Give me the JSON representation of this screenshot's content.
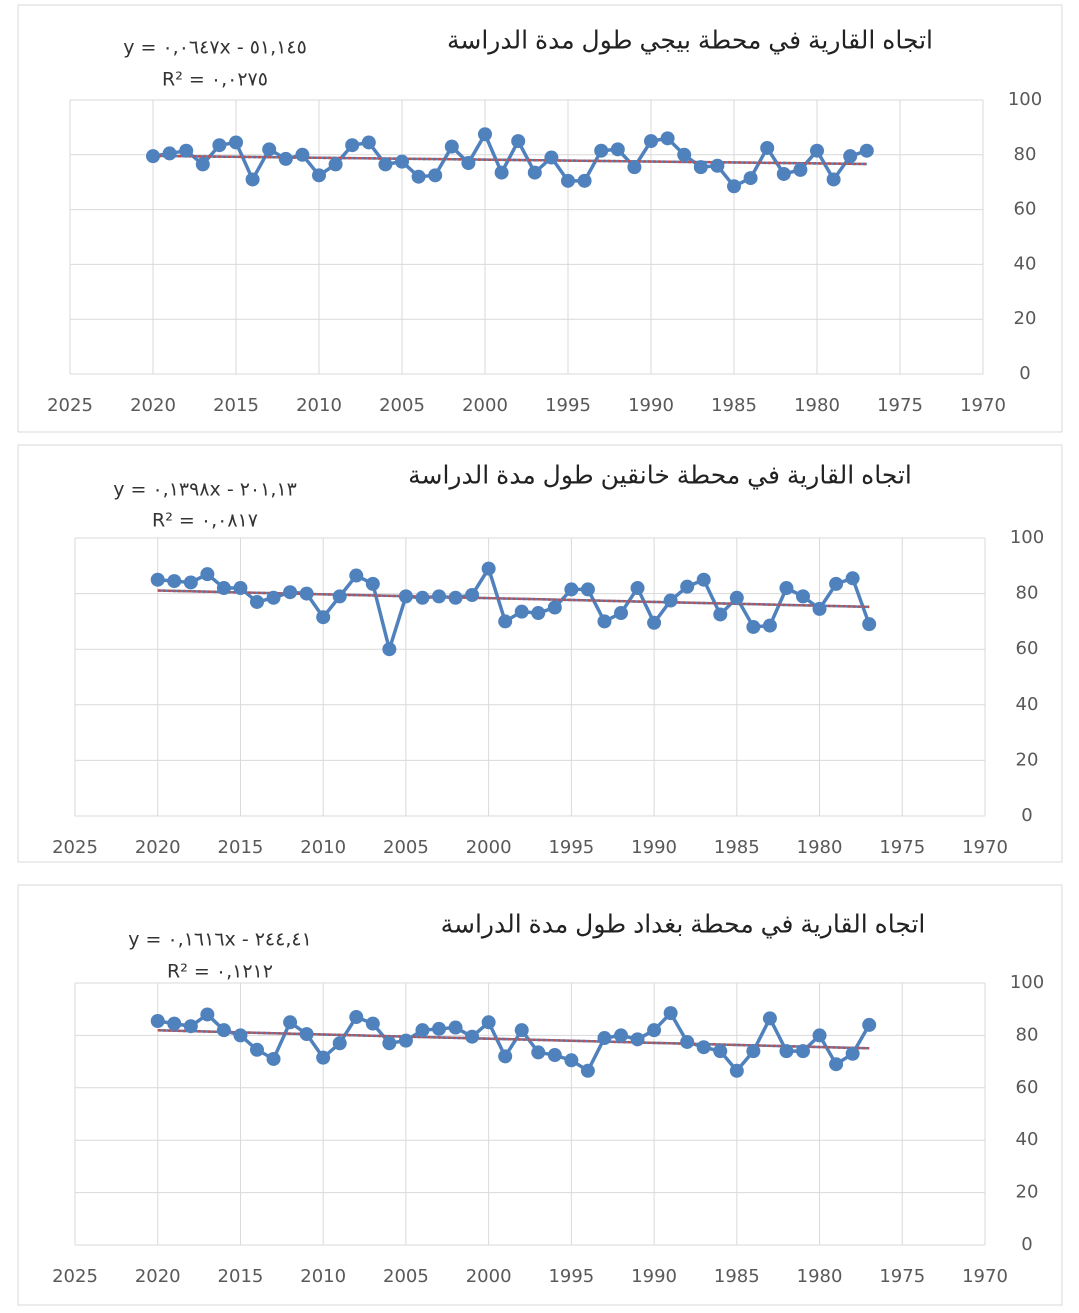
{
  "chart_data": [
    {
      "type": "line",
      "title": "اتجاه القارية في محطة بيجي طول مدة الدراسة",
      "equation": "y = ٠,٠٦٤٧x - ٥١,١٤٥",
      "r2": "R² = ٠,٠٢٧٥",
      "x": [
        2020,
        2019,
        2018,
        2017,
        2016,
        2015,
        2014,
        2013,
        2012,
        2011,
        2010,
        2009,
        2008,
        2007,
        2006,
        2005,
        2004,
        2003,
        2002,
        2001,
        2000,
        1999,
        1998,
        1997,
        1996,
        1995,
        1994,
        1993,
        1992,
        1991,
        1990,
        1989,
        1988,
        1987,
        1986,
        1985,
        1984,
        1983,
        1982,
        1981,
        1980,
        1979,
        1978,
        1977
      ],
      "values": [
        79.5,
        80.5,
        81.5,
        76.5,
        83.5,
        84.5,
        71,
        82,
        78.5,
        80,
        72.5,
        76.5,
        83.5,
        84.5,
        76.5,
        77.5,
        72,
        72.5,
        83,
        77,
        87.5,
        73.5,
        85,
        73.5,
        79,
        70.5,
        70.5,
        81.5,
        82,
        75.5,
        85,
        86,
        80,
        75.5,
        76,
        68.5,
        71.5,
        82.5,
        73,
        74.5,
        81.5,
        71,
        79.5,
        81.5
      ],
      "color": "#4f81bd",
      "trendline_color": "#c0504d",
      "xlim": [
        2025,
        1970
      ],
      "xticks": [
        2025,
        2020,
        2015,
        2010,
        2005,
        2000,
        1995,
        1990,
        1985,
        1980,
        1975,
        1970
      ],
      "ylim": [
        0,
        100
      ],
      "yticks": [
        0,
        20,
        40,
        60,
        80,
        100
      ],
      "grid": true
    },
    {
      "type": "line",
      "title": "اتجاه القارية في محطة خانقين طول مدة الدراسة",
      "equation": "y = ٠,١٣٩٨x - ٢٠١,١٣",
      "r2": "R² = ٠,٠٨١٧",
      "x": [
        2020,
        2019,
        2018,
        2017,
        2016,
        2015,
        2014,
        2013,
        2012,
        2011,
        2010,
        2009,
        2008,
        2007,
        2006,
        2005,
        2004,
        2003,
        2002,
        2001,
        2000,
        1999,
        1998,
        1997,
        1996,
        1995,
        1994,
        1993,
        1992,
        1991,
        1990,
        1989,
        1988,
        1987,
        1986,
        1985,
        1984,
        1983,
        1982,
        1981,
        1980,
        1979,
        1978,
        1977
      ],
      "values": [
        85,
        84.5,
        84,
        87,
        82,
        82,
        77,
        78.5,
        80.5,
        80,
        71.5,
        79,
        86.5,
        83.5,
        60,
        79,
        78.5,
        79,
        78.5,
        79.5,
        89,
        70,
        73.5,
        73,
        75,
        81.5,
        81.5,
        70,
        73,
        82,
        69.5,
        77.5,
        82.5,
        85,
        72.5,
        78.5,
        68,
        68.5,
        82,
        79,
        74.5,
        83.5,
        85.5,
        69
      ],
      "color": "#4f81bd",
      "trendline_color": "#c0504d",
      "xlim": [
        2025,
        1970
      ],
      "xticks": [
        2025,
        2020,
        2015,
        2010,
        2005,
        2000,
        1995,
        1990,
        1985,
        1980,
        1975,
        1970
      ],
      "ylim": [
        0,
        100
      ],
      "yticks": [
        0,
        20,
        40,
        60,
        80,
        100
      ],
      "grid": true
    },
    {
      "type": "line",
      "title": "اتجاه القارية في محطة بغداد طول مدة الدراسة",
      "equation": "y = ٠,١٦١٦x - ٢٤٤,٤١",
      "r2": "R² = ٠,١٢١٢",
      "x": [
        2020,
        2019,
        2018,
        2017,
        2016,
        2015,
        2014,
        2013,
        2012,
        2011,
        2010,
        2009,
        2008,
        2007,
        2006,
        2005,
        2004,
        2003,
        2002,
        2001,
        2000,
        1999,
        1998,
        1997,
        1996,
        1995,
        1994,
        1993,
        1992,
        1991,
        1990,
        1989,
        1988,
        1987,
        1986,
        1985,
        1984,
        1983,
        1982,
        1981,
        1980,
        1979,
        1978,
        1977
      ],
      "values": [
        85.5,
        84.5,
        83.5,
        88,
        82,
        80,
        74.5,
        71,
        85,
        80.5,
        71.5,
        77,
        87,
        84.5,
        77,
        78,
        82,
        82.5,
        83,
        79.5,
        85,
        72,
        82,
        73.5,
        72.5,
        70.5,
        66.5,
        79,
        80,
        78.5,
        82,
        88.5,
        77.5,
        75.5,
        74,
        66.5,
        74,
        86.5,
        74,
        74,
        80,
        69,
        73,
        84
      ],
      "color": "#4f81bd",
      "trendline_color": "#c0504d",
      "xlim": [
        2025,
        1970
      ],
      "xticks": [
        2025,
        2020,
        2015,
        2010,
        2005,
        2000,
        1995,
        1990,
        1985,
        1980,
        1975,
        1970
      ],
      "ylim": [
        0,
        100
      ],
      "yticks": [
        0,
        20,
        40,
        60,
        80,
        100
      ],
      "grid": true
    }
  ]
}
